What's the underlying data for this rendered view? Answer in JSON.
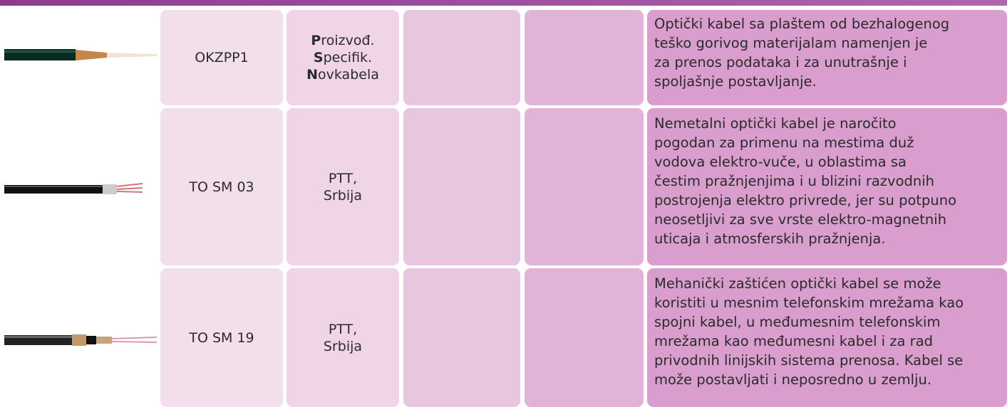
{
  "table": {
    "rows": [
      {
        "code": "OKZPP1",
        "maker": [
          [
            {
              "text": "P",
              "bold": true
            },
            {
              "text": "roizvođ."
            }
          ],
          [
            {
              "text": "S",
              "bold": true
            },
            {
              "text": "pecifik."
            }
          ],
          [
            {
              "text": "N",
              "bold": true
            },
            {
              "text": "ovkabela"
            }
          ]
        ],
        "description": [
          "Optički kabel sa plaštem od bezhalogenog",
          "teško gorivog materijalam namenjen je",
          "za prenos podataka i za unutrašnje i",
          "spoljašnje postavljanje."
        ]
      },
      {
        "code": "TO SM 03",
        "maker": [
          [
            {
              "text": "PTT,"
            }
          ],
          [
            {
              "text": "Srbija"
            }
          ]
        ],
        "description": [
          "Nemetalni optički kabel je naročito",
          "pogodan za primenu na mestima duž",
          "vodova elektro-vuče, u oblastima sa",
          "čestim pražnjenjima i u blizini razvodnih",
          "postrojenja elektro privrede, jer su potpuno",
          "neosetljivi za sve vrste elektro-magnetnih",
          "uticaja i atmosferskih pražnjenja."
        ]
      },
      {
        "code": "TO SM 19",
        "maker": [
          [
            {
              "text": "PTT,"
            }
          ],
          [
            {
              "text": "Srbija"
            }
          ]
        ],
        "description": [
          "Mehanički zaštićen optički kabel se može",
          "koristiti u mesnim telefonskim mrežama kao",
          "spojni kabel, u međumesnim telefonskim",
          "mrežama kao međumesni kabel i za rad",
          "privodnih linijskih sistema prenosa. Kabel se",
          "može postavljati i neposredno u zemlju."
        ]
      }
    ]
  }
}
